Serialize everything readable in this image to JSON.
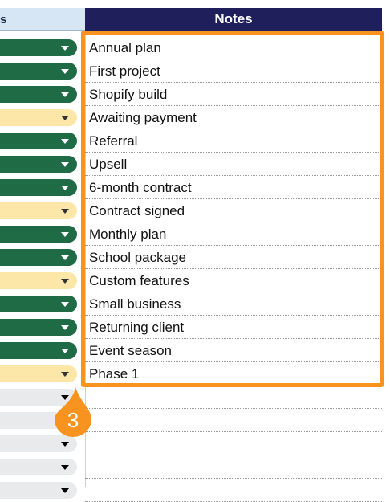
{
  "header": {
    "left_partial_label": "s",
    "notes_label": "Notes"
  },
  "status_pills": [
    {
      "variant": "green"
    },
    {
      "variant": "green"
    },
    {
      "variant": "green"
    },
    {
      "variant": "yellow"
    },
    {
      "variant": "green"
    },
    {
      "variant": "green"
    },
    {
      "variant": "green"
    },
    {
      "variant": "yellow"
    },
    {
      "variant": "green"
    },
    {
      "variant": "green"
    },
    {
      "variant": "yellow"
    },
    {
      "variant": "green"
    },
    {
      "variant": "green"
    },
    {
      "variant": "green"
    },
    {
      "variant": "yellow"
    },
    {
      "variant": "gray"
    },
    {
      "variant": "gray"
    },
    {
      "variant": "gray"
    },
    {
      "variant": "gray"
    },
    {
      "variant": "gray"
    }
  ],
  "notes": [
    "Annual plan",
    "First project",
    "Shopify build",
    "Awaiting payment",
    "Referral",
    "Upsell",
    "6-month contract",
    "Contract signed",
    "Monthly plan",
    "School package",
    "Custom features",
    "Small business",
    "Returning client",
    "Event season",
    "Phase 1",
    "",
    "",
    "",
    "",
    ""
  ],
  "highlight": {
    "color": "#f7931e",
    "callout_number": "3"
  },
  "colors": {
    "header_dark": "#1f1f5c",
    "header_light": "#d6e6f5",
    "pill_green": "#1e6b45",
    "pill_yellow": "#fde7a8",
    "pill_gray": "#e9eaec"
  }
}
